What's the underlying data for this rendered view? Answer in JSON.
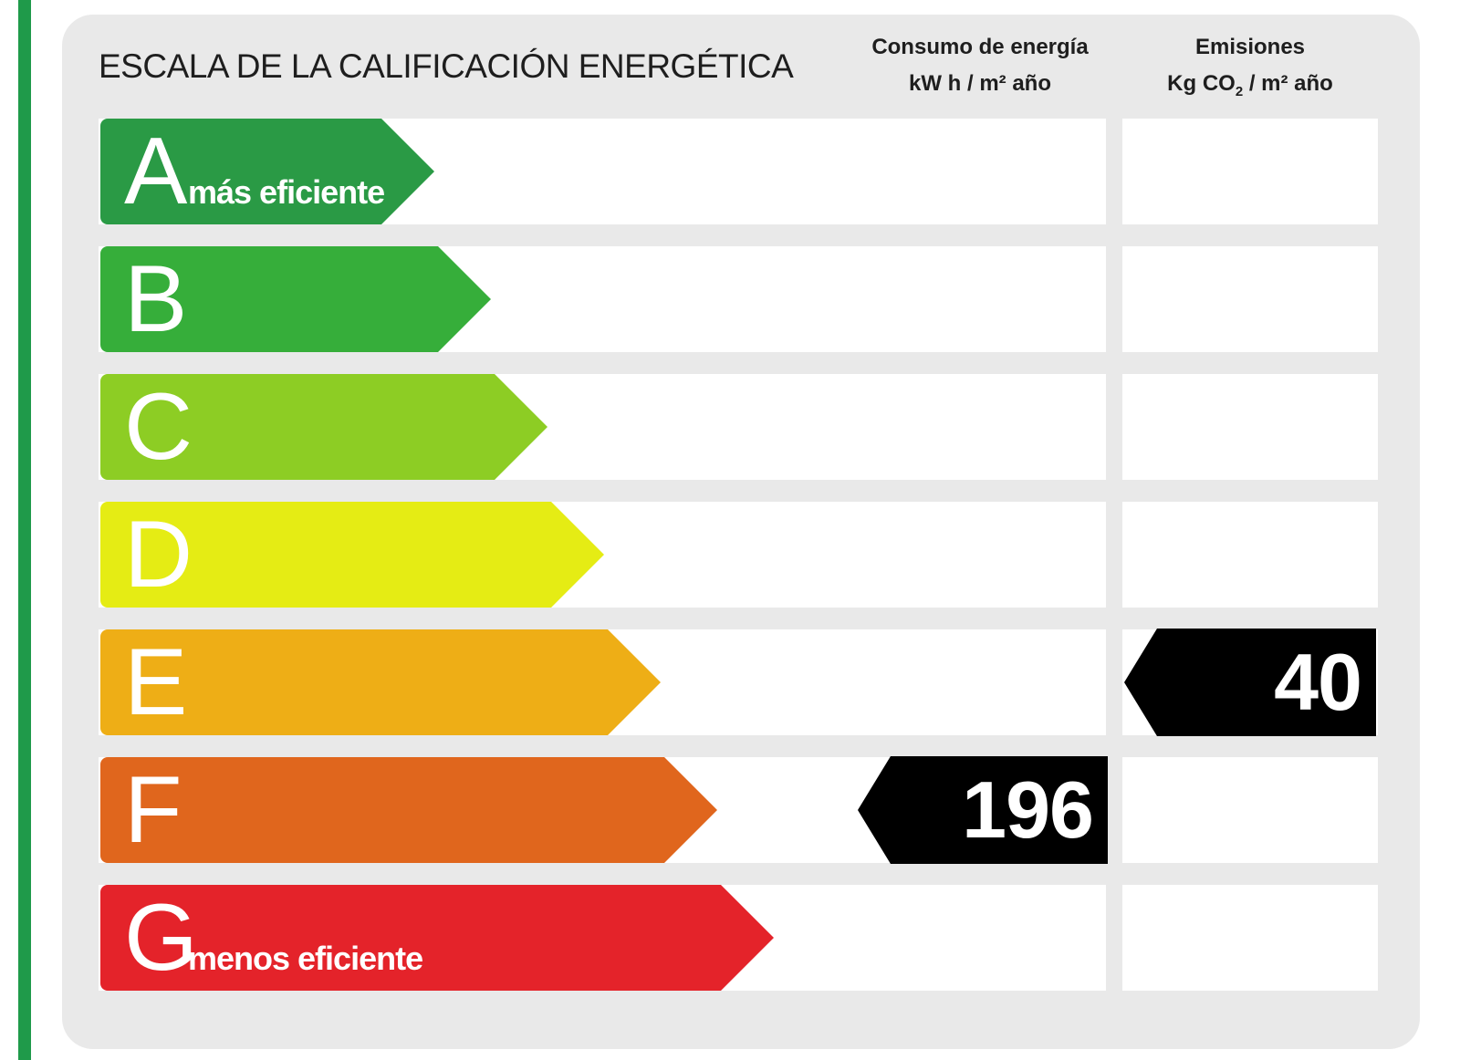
{
  "title": "ESCALA DE LA CALIFICACIÓN ENERGÉTICA",
  "columns": {
    "consumo": {
      "line1": "Consumo de energía",
      "line2": "kW h / m² año"
    },
    "emisiones": {
      "line1": "Emisiones",
      "line2_pre": "Kg CO",
      "line2_sub": "2",
      "line2_post": " / m² año"
    }
  },
  "classes": [
    {
      "letter": "A",
      "note": "más eficiente",
      "color": "#2a9a45"
    },
    {
      "letter": "B",
      "note": "",
      "color": "#36ae3a"
    },
    {
      "letter": "C",
      "note": "",
      "color": "#8dcd24"
    },
    {
      "letter": "D",
      "note": "",
      "color": "#e5ec14"
    },
    {
      "letter": "E",
      "note": "",
      "color": "#eeae16"
    },
    {
      "letter": "F",
      "note": "",
      "color": "#e0661d"
    },
    {
      "letter": "G",
      "note": "menos eficiente",
      "color": "#e4232a"
    }
  ],
  "ratings": {
    "consumo": {
      "value": "196",
      "class": "F"
    },
    "emisiones": {
      "value": "40",
      "class": "E"
    }
  },
  "colors": {
    "border_green": "#1f9a4a",
    "panel": "#e9e9e9",
    "marker": "#000000"
  }
}
